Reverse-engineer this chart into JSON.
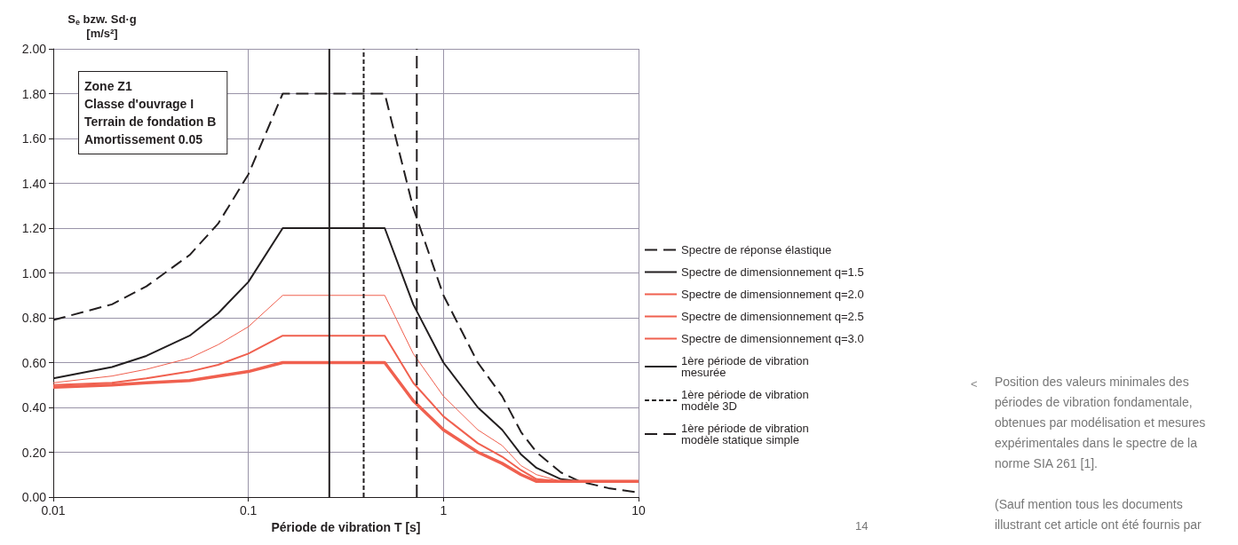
{
  "chart_data": {
    "type": "line",
    "xlabel": "Période de vibration T [s]",
    "ylabel": "S$_{e}$ bzw. Sd·g\n[m/s²]",
    "x": [
      0.01,
      0.02,
      0.03,
      0.05,
      0.07,
      0.1,
      0.15,
      0.5,
      0.7,
      1,
      1.5,
      2,
      2.5,
      3,
      4,
      5,
      7,
      10
    ],
    "series": [
      {
        "name": "Spectre de réponse élastique",
        "color": "#231f20",
        "line_style": "dashed",
        "values": [
          0.79,
          0.86,
          0.94,
          1.08,
          1.22,
          1.44,
          1.8,
          1.8,
          1.29,
          0.9,
          0.6,
          0.45,
          0.29,
          0.2,
          0.11,
          0.07,
          0.04,
          0.02
        ]
      },
      {
        "name": "Spectre de dimensionnement q=1.5",
        "color": "#231f20",
        "line_style": "solid",
        "values": [
          0.53,
          0.58,
          0.63,
          0.72,
          0.82,
          0.96,
          1.2,
          1.2,
          0.86,
          0.6,
          0.4,
          0.3,
          0.19,
          0.13,
          0.08,
          0.07,
          null,
          null
        ]
      },
      {
        "name": "Spectre de dimensionnement q=2.0",
        "color": "#f0604f",
        "line_style": "solid",
        "values": [
          0.51,
          0.54,
          0.57,
          0.62,
          0.68,
          0.76,
          0.9,
          0.9,
          0.64,
          0.45,
          0.3,
          0.23,
          0.14,
          0.1,
          0.07,
          0.07,
          0.07,
          0.07
        ]
      },
      {
        "name": "Spectre de dimensionnement q=2.5",
        "color": "#f0604f",
        "line_style": "solid",
        "values": [
          0.5,
          0.51,
          0.53,
          0.56,
          0.59,
          0.64,
          0.72,
          0.72,
          0.51,
          0.36,
          0.24,
          0.18,
          0.12,
          0.08,
          0.07,
          0.07,
          0.07,
          0.07
        ]
      },
      {
        "name": "Spectre de dimensionnement q=3.0",
        "color": "#f0604f",
        "line_style": "solid",
        "values": [
          0.49,
          0.5,
          0.51,
          0.52,
          0.54,
          0.56,
          0.6,
          0.6,
          0.43,
          0.3,
          0.2,
          0.15,
          0.1,
          0.07,
          0.07,
          0.07,
          0.07,
          0.07
        ]
      },
      {
        "name": "1ère période de vibration mesurée",
        "color": "#231f20",
        "line_style": "solid",
        "x": [
          0.26,
          0.26
        ],
        "values": [
          0,
          2
        ]
      },
      {
        "name": "1ère période de vibration modèle 3D",
        "color": "#231f20",
        "line_style": "dotted",
        "x": [
          0.39,
          0.39
        ],
        "values": [
          0,
          2
        ]
      },
      {
        "name": "1ère période de vibration modèle statique simple",
        "color": "#231f20",
        "line_style": "dashed",
        "x": [
          0.73,
          0.73
        ],
        "values": [
          0,
          2
        ]
      }
    ],
    "xlim": [
      0.01,
      10
    ],
    "xticks": [
      0.01,
      0.1,
      1,
      10
    ],
    "log": "x",
    "ylim": [
      0,
      2
    ],
    "yticks": [
      {
        "value": 0,
        "label": "0.00"
      },
      {
        "value": 0.2,
        "label": "0.20"
      },
      {
        "value": 0.4,
        "label": "0.40"
      },
      {
        "value": 0.6,
        "label": "0.60"
      },
      {
        "value": 0.8,
        "label": "0.80"
      },
      {
        "value": 1,
        "label": "1.00"
      },
      {
        "value": 1.2,
        "label": "1.20"
      },
      {
        "value": 1.4,
        "label": "1.40"
      },
      {
        "value": 1.6,
        "label": "1.60"
      },
      {
        "value": 1.8,
        "label": "1.80"
      },
      {
        "value": 2,
        "label": "2.00"
      }
    ],
    "grid": true,
    "legend": "right",
    "marker": "none",
    "annotations": [
      "Zone Z1",
      "Classe d'ouvrage I",
      "Terrain de fondation B",
      "Amortissement 0.05",
      "<",
      "Position des valeurs minimales des périodes de vibration fondamentale, obtenues par modélisation et mesures expérimentales dans le spectre de la norme SIA 261 [1].",
      "(Sauf mention tous les documents illustrant cet article ont été fournis par les auteurs.)",
      "14"
    ]
  }
}
